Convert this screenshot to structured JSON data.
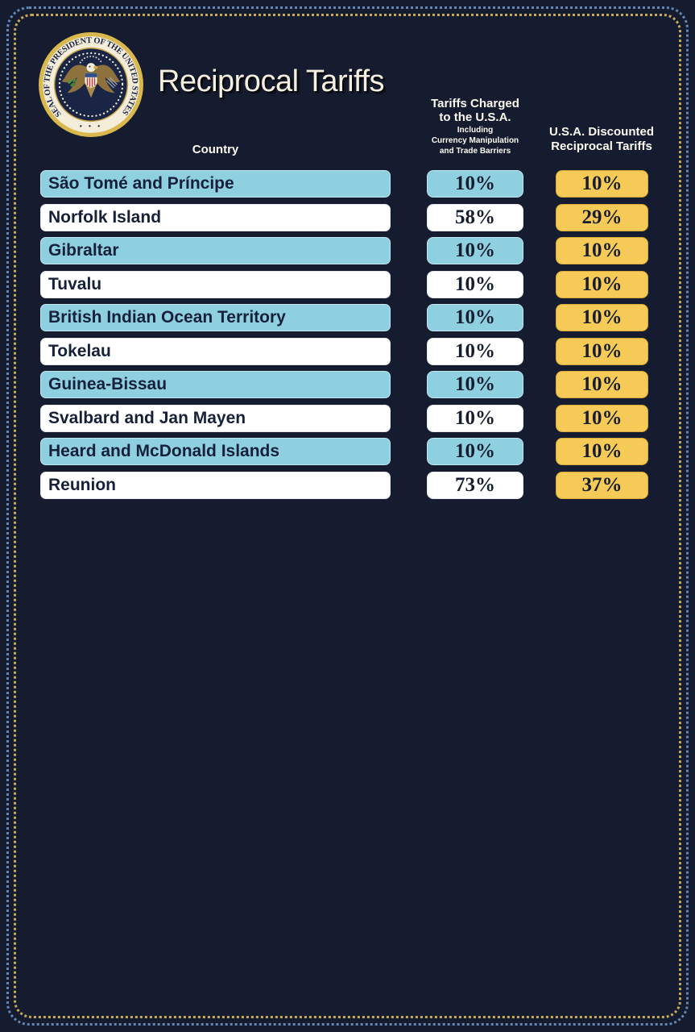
{
  "page": {
    "title": "Reciprocal Tariffs",
    "seal_ring_text": "SEAL OF THE PRESIDENT OF THE UNITED STATES",
    "seal_bottom_dots": "• • •"
  },
  "columns": {
    "country_label": "Country",
    "charged_title_line1": "Tariffs Charged",
    "charged_title_line2": "to the U.S.A.",
    "charged_subtitle_line1": "Including",
    "charged_subtitle_line2": "Currency Manipulation",
    "charged_subtitle_line3": "and Trade Barriers",
    "discounted_title_line1": "U.S.A. Discounted",
    "discounted_title_line2": "Reciprocal Tariffs"
  },
  "chart_data": {
    "type": "table",
    "title": "Reciprocal Tariffs",
    "columns": [
      "Country",
      "Tariffs Charged to the U.S.A. Including Currency Manipulation and Trade Barriers",
      "U.S.A. Discounted Reciprocal Tariffs"
    ],
    "rows": [
      {
        "country": "São Tomé and Príncipe",
        "charged": "10%",
        "discounted": "10%",
        "highlight": true
      },
      {
        "country": "Norfolk Island",
        "charged": "58%",
        "discounted": "29%",
        "highlight": false
      },
      {
        "country": "Gibraltar",
        "charged": "10%",
        "discounted": "10%",
        "highlight": true
      },
      {
        "country": "Tuvalu",
        "charged": "10%",
        "discounted": "10%",
        "highlight": false
      },
      {
        "country": "British Indian Ocean Territory",
        "charged": "10%",
        "discounted": "10%",
        "highlight": true
      },
      {
        "country": "Tokelau",
        "charged": "10%",
        "discounted": "10%",
        "highlight": false
      },
      {
        "country": "Guinea-Bissau",
        "charged": "10%",
        "discounted": "10%",
        "highlight": true
      },
      {
        "country": "Svalbard and Jan Mayen",
        "charged": "10%",
        "discounted": "10%",
        "highlight": false
      },
      {
        "country": "Heard and McDonald Islands",
        "charged": "10%",
        "discounted": "10%",
        "highlight": true
      },
      {
        "country": "Reunion",
        "charged": "73%",
        "discounted": "37%",
        "highlight": false
      }
    ]
  },
  "colors": {
    "background": "#151c2f",
    "row_highlight_blue": "#8fd0e0",
    "row_plain_white": "#ffffff",
    "accent_gold": "#f6ca56",
    "bar_text": "#17203a",
    "title_text": "#f5efdf",
    "border_dots_outer_blue": "#6487b5",
    "border_dots_inner_gold": "#c8a958"
  }
}
